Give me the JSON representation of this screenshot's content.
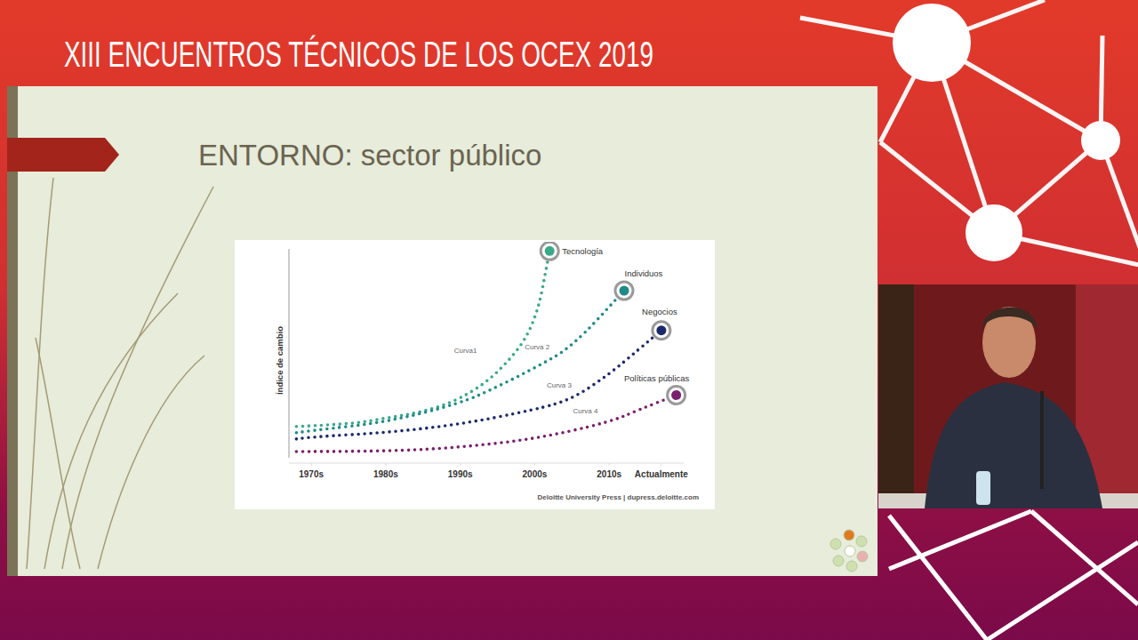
{
  "header": {
    "title": "XIII ENCUENTROS TÉCNICOS DE LOS OCEX 2019"
  },
  "slide": {
    "title": "ENTORNO: sector público"
  },
  "chart_data": {
    "type": "line",
    "ylabel": "Índice de cambio",
    "source": "Deloitte University Press  |  dupress.deloitte.com",
    "xlim": [
      1967,
      2020
    ],
    "xticks": [
      {
        "value": 1970,
        "label": "1970s"
      },
      {
        "value": 1980,
        "label": "1980s"
      },
      {
        "value": 1990,
        "label": "1990s"
      },
      {
        "value": 2000,
        "label": "2000s"
      },
      {
        "value": 2010,
        "label": "2010s"
      },
      {
        "value": 2017,
        "label": "Actualmente"
      }
    ],
    "ylim": [
      0,
      100
    ],
    "yticks": [],
    "tick_labels": "x",
    "grid": false,
    "line_style": "dotted",
    "annotations": [
      "Curva1",
      "Curva 2",
      "Curva 3",
      "Curva 4"
    ],
    "series": [
      {
        "name": "Tecnología",
        "color": "#3aa98a",
        "x": [
          1968,
          1975,
          1980,
          1985,
          1990,
          1995,
          2000,
          2002
        ],
        "values": [
          15,
          16,
          19,
          22,
          28,
          40,
          62,
          99
        ]
      },
      {
        "name": "Individuos",
        "color": "#1f8a8a",
        "x": [
          1968,
          1970,
          1980,
          1990,
          1995,
          2000,
          2005,
          2012
        ],
        "values": [
          12,
          13,
          17,
          26,
          34,
          43,
          53,
          80
        ]
      },
      {
        "name": "Negocios",
        "color": "#1b2a6b",
        "x": [
          1968,
          1970,
          1980,
          1990,
          2000,
          2005,
          2010,
          2014,
          2017
        ],
        "values": [
          9,
          10,
          12,
          16,
          23,
          28,
          40,
          52,
          61
        ]
      },
      {
        "name": "Políticas públicas",
        "color": "#7a1f6e",
        "x": [
          1968,
          1980,
          1990,
          2000,
          2010,
          2014,
          2019
        ],
        "values": [
          3,
          3,
          5,
          9,
          17,
          23,
          30
        ]
      }
    ]
  }
}
